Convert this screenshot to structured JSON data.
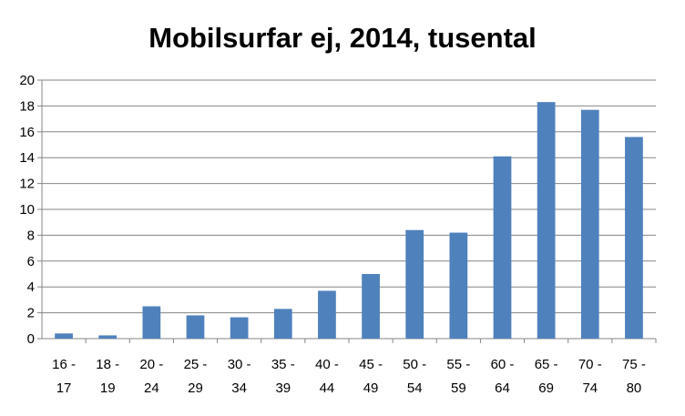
{
  "chart_data": {
    "type": "bar",
    "title": "Mobilsurfar ej, 2014, tusental",
    "xlabel": "",
    "ylabel": "",
    "ylim": [
      0,
      20
    ],
    "yticks": [
      0,
      2,
      4,
      6,
      8,
      10,
      12,
      14,
      16,
      18,
      20
    ],
    "grid": true,
    "legend": "none",
    "bar_color": "#4F81BD",
    "categories": [
      [
        "16 -",
        "17"
      ],
      [
        "18 -",
        "19"
      ],
      [
        "20 -",
        "24"
      ],
      [
        "25 -",
        "29"
      ],
      [
        "30 -",
        "34"
      ],
      [
        "35 -",
        "39"
      ],
      [
        "40 -",
        "44"
      ],
      [
        "45 -",
        "49"
      ],
      [
        "50 -",
        "54"
      ],
      [
        "55 -",
        "59"
      ],
      [
        "60 -",
        "64"
      ],
      [
        "65 -",
        "69"
      ],
      [
        "70 -",
        "74"
      ],
      [
        "75 -",
        "80"
      ]
    ],
    "values": [
      0.4,
      0.25,
      2.5,
      1.8,
      1.65,
      2.3,
      3.7,
      5.0,
      8.4,
      8.2,
      14.1,
      18.3,
      17.7,
      15.6
    ]
  }
}
